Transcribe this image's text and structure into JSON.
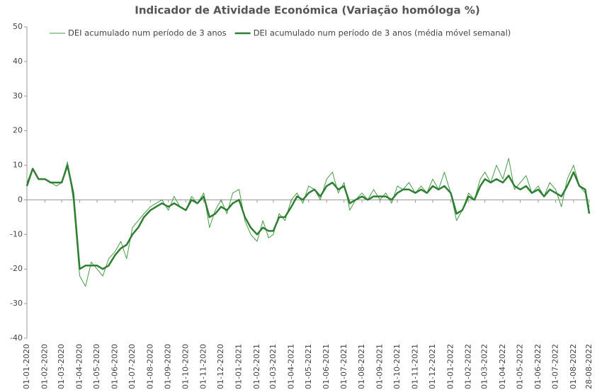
{
  "chart_data": {
    "type": "line",
    "title": "Indicador de Atividade Económica (Variação homóloga %)",
    "x": [
      "2020-01-01",
      "2020-01-11",
      "2020-01-21",
      "2020-02-01",
      "2020-02-11",
      "2020-02-21",
      "2020-03-01",
      "2020-03-11",
      "2020-03-21",
      "2020-04-01",
      "2020-04-11",
      "2020-04-21",
      "2020-05-01",
      "2020-05-11",
      "2020-05-21",
      "2020-06-01",
      "2020-06-11",
      "2020-06-21",
      "2020-07-01",
      "2020-07-11",
      "2020-07-21",
      "2020-08-01",
      "2020-08-11",
      "2020-08-21",
      "2020-09-01",
      "2020-09-11",
      "2020-09-21",
      "2020-10-01",
      "2020-10-11",
      "2020-10-21",
      "2020-11-01",
      "2020-11-11",
      "2020-11-21",
      "2020-12-01",
      "2020-12-11",
      "2020-12-21",
      "2021-01-01",
      "2021-01-11",
      "2021-01-21",
      "2021-02-01",
      "2021-02-11",
      "2021-02-21",
      "2021-03-01",
      "2021-03-11",
      "2021-03-21",
      "2021-04-01",
      "2021-04-11",
      "2021-04-21",
      "2021-05-01",
      "2021-05-11",
      "2021-05-21",
      "2021-06-01",
      "2021-06-11",
      "2021-06-21",
      "2021-07-01",
      "2021-07-11",
      "2021-07-21",
      "2021-08-01",
      "2021-08-11",
      "2021-08-21",
      "2021-09-01",
      "2021-09-11",
      "2021-09-21",
      "2021-10-01",
      "2021-10-11",
      "2021-10-21",
      "2021-11-01",
      "2021-11-11",
      "2021-11-21",
      "2021-12-01",
      "2021-12-11",
      "2021-12-21",
      "2022-01-01",
      "2022-01-11",
      "2022-01-21",
      "2022-02-01",
      "2022-02-11",
      "2022-02-21",
      "2022-03-01",
      "2022-03-11",
      "2022-03-21",
      "2022-04-01",
      "2022-04-11",
      "2022-04-21",
      "2022-05-01",
      "2022-05-11",
      "2022-05-21",
      "2022-06-01",
      "2022-06-11",
      "2022-06-21",
      "2022-07-01",
      "2022-07-11",
      "2022-07-21",
      "2022-08-01",
      "2022-08-11",
      "2022-08-21",
      "2022-08-28"
    ],
    "series": [
      {
        "name": "DEI acumulado num período de 3 anos",
        "color": "#4a9a4a",
        "width": 1,
        "values": [
          5,
          9,
          6,
          6,
          5,
          4,
          5,
          11,
          0,
          -22,
          -25,
          -18,
          -20,
          -22,
          -17,
          -15,
          -12,
          -17,
          -8,
          -6,
          -4,
          -2,
          -1,
          0,
          -3,
          1,
          -2,
          -3,
          1,
          -1,
          2,
          -8,
          -3,
          0,
          -4,
          2,
          3,
          -6,
          -10,
          -12,
          -6,
          -11,
          -10,
          -4,
          -6,
          0,
          2,
          -1,
          4,
          3,
          0,
          6,
          8,
          2,
          5,
          -3,
          0,
          2,
          0,
          3,
          0,
          2,
          -1,
          4,
          3,
          5,
          2,
          4,
          2,
          6,
          3,
          8,
          2,
          -6,
          -3,
          2,
          0,
          6,
          8,
          5,
          10,
          6,
          12,
          3,
          5,
          7,
          2,
          4,
          1,
          5,
          3,
          -2,
          6,
          10,
          4,
          2,
          -2
        ]
      },
      {
        "name": "DEI acumulado num período de 3 anos (média móvel semanal)",
        "color": "#2f7f33",
        "width": 2.5,
        "values": [
          4,
          9,
          6,
          6,
          5,
          5,
          5,
          10,
          2,
          -20,
          -19,
          -19,
          -19,
          -20,
          -19,
          -16,
          -14,
          -13,
          -10,
          -8,
          -5,
          -3,
          -2,
          -1,
          -2,
          -1,
          -2,
          -3,
          0,
          -1,
          1,
          -5,
          -4,
          -2,
          -3,
          -1,
          0,
          -5,
          -8,
          -10,
          -8,
          -9,
          -9,
          -5,
          -5,
          -2,
          1,
          0,
          2,
          3,
          1,
          4,
          5,
          3,
          4,
          -1,
          0,
          1,
          0,
          1,
          1,
          1,
          0,
          2,
          3,
          3,
          2,
          3,
          2,
          4,
          3,
          4,
          2,
          -4,
          -3,
          1,
          0,
          4,
          6,
          5,
          6,
          5,
          7,
          4,
          3,
          4,
          2,
          3,
          1,
          3,
          2,
          1,
          4,
          8,
          4,
          3,
          -4
        ]
      }
    ],
    "xlim": [
      "2020-01-01",
      "2022-08-28"
    ],
    "xticks": [
      {
        "value": "2020-01-01",
        "label": "01-01-2020"
      },
      {
        "value": "2020-02-01",
        "label": "01-02-2020"
      },
      {
        "value": "2020-03-01",
        "label": "01-03-2020"
      },
      {
        "value": "2020-04-01",
        "label": "01-04-2020"
      },
      {
        "value": "2020-05-01",
        "label": "01-05-2020"
      },
      {
        "value": "2020-06-01",
        "label": "01-06-2020"
      },
      {
        "value": "2020-07-01",
        "label": "01-07-2020"
      },
      {
        "value": "2020-08-01",
        "label": "01-08-2020"
      },
      {
        "value": "2020-09-01",
        "label": "01-09-2020"
      },
      {
        "value": "2020-10-01",
        "label": "01-10-2020"
      },
      {
        "value": "2020-11-01",
        "label": "01-11-2020"
      },
      {
        "value": "2020-12-01",
        "label": "01-12-2020"
      },
      {
        "value": "2021-01-01",
        "label": "01-01-2021"
      },
      {
        "value": "2021-02-01",
        "label": "01-02-2021"
      },
      {
        "value": "2021-03-01",
        "label": "01-03-2021"
      },
      {
        "value": "2021-04-01",
        "label": "01-04-2021"
      },
      {
        "value": "2021-05-01",
        "label": "01-05-2021"
      },
      {
        "value": "2021-06-01",
        "label": "01-06-2021"
      },
      {
        "value": "2021-07-01",
        "label": "01-07-2021"
      },
      {
        "value": "2021-08-01",
        "label": "01-08-2021"
      },
      {
        "value": "2021-09-01",
        "label": "01-09-2021"
      },
      {
        "value": "2021-10-01",
        "label": "01-10-2021"
      },
      {
        "value": "2021-11-01",
        "label": "01-11-2021"
      },
      {
        "value": "2021-12-01",
        "label": "01-12-2021"
      },
      {
        "value": "2022-01-01",
        "label": "01-01-2022"
      },
      {
        "value": "2022-02-01",
        "label": "01-02-2022"
      },
      {
        "value": "2022-03-01",
        "label": "01-03-2022"
      },
      {
        "value": "2022-04-01",
        "label": "01-04-2022"
      },
      {
        "value": "2022-05-01",
        "label": "01-05-2022"
      },
      {
        "value": "2022-06-01",
        "label": "01-06-2022"
      },
      {
        "value": "2022-07-01",
        "label": "01-07-2022"
      },
      {
        "value": "2022-08-01",
        "label": "01-08-2022"
      },
      {
        "value": "2022-08-28",
        "label": "28-08-2022"
      }
    ],
    "ylim": [
      -40,
      50
    ],
    "yticks": [
      -40,
      -30,
      -20,
      -10,
      0,
      10,
      20,
      30,
      40,
      50
    ],
    "grid": false,
    "legend": "top"
  }
}
